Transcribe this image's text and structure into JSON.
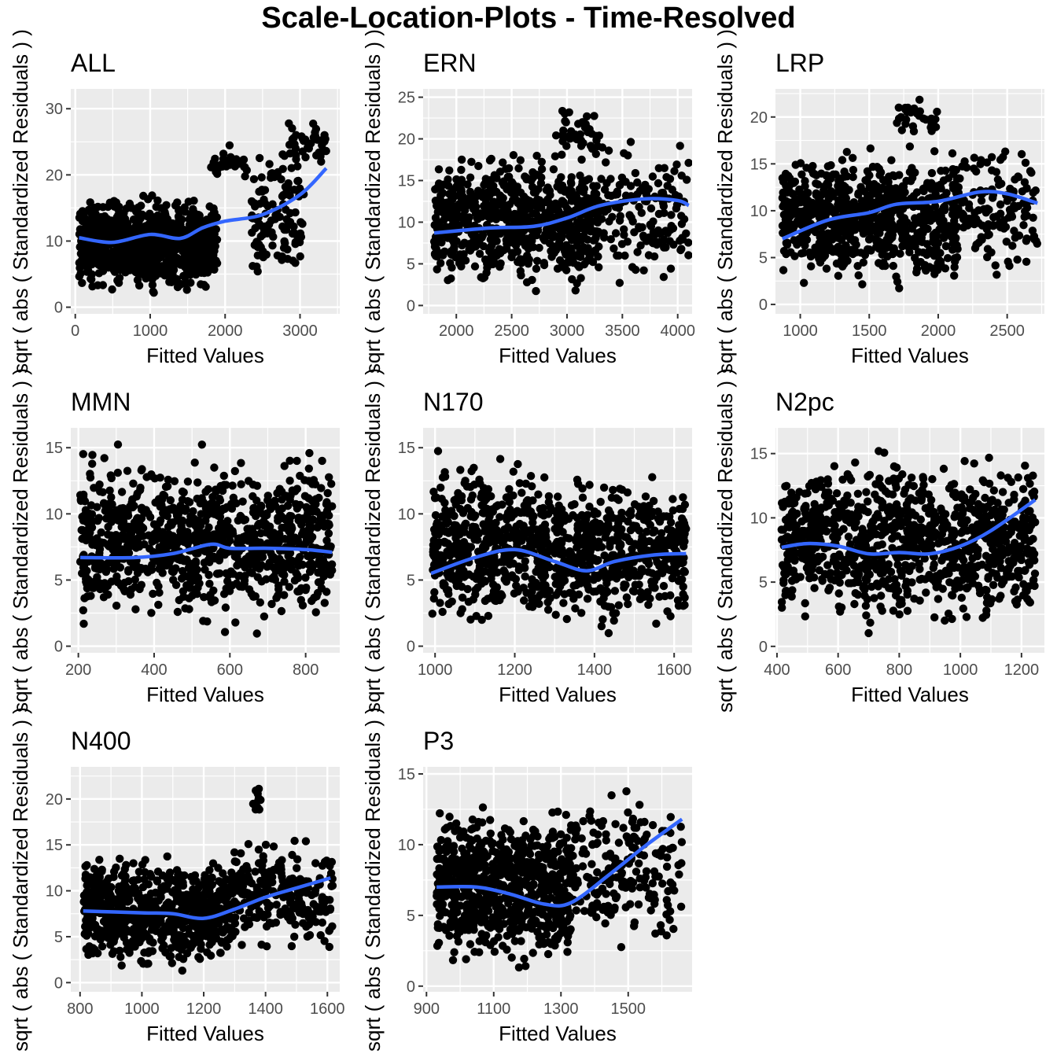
{
  "title": "Scale-Location-Plots - Time-Resolved",
  "colors": {
    "panel_bg": "#EBEBEB",
    "grid": "#FFFFFF",
    "points": "#000000",
    "smooth": "#3366FF",
    "axis_text": "#4D4D4D"
  },
  "chart_data": [
    {
      "type": "scatter",
      "title": "ALL",
      "xlabel": "Fitted Values",
      "ylabel": "sqrt ( abs ( Standardized Residuals ) )",
      "xlim": [
        -60,
        3530
      ],
      "ylim": [
        -1,
        33
      ],
      "xticks": [
        0,
        1000,
        2000,
        3000
      ],
      "yticks": [
        0,
        10,
        20,
        30
      ],
      "grid": true,
      "clusters": [
        {
          "x": [
            50,
            1900
          ],
          "y": [
            1,
            18
          ],
          "n": 900
        },
        {
          "x": [
            1800,
            2300
          ],
          "y": [
            18,
            25
          ],
          "n": 30
        },
        {
          "x": [
            2350,
            3050
          ],
          "y": [
            2,
            26
          ],
          "n": 120
        },
        {
          "x": [
            2850,
            3350
          ],
          "y": [
            20,
            31
          ],
          "n": 40
        }
      ],
      "smooth": {
        "x": [
          50,
          500,
          1000,
          1400,
          1700,
          2000,
          2500,
          3000,
          3350
        ],
        "y": [
          10.5,
          9.8,
          11,
          10.4,
          12,
          13,
          14,
          17,
          21
        ]
      }
    },
    {
      "type": "scatter",
      "title": "ERN",
      "xlabel": "Fitted Values",
      "ylabel": "sqrt ( abs ( Standardized Residuals ) )",
      "xlim": [
        1700,
        4130
      ],
      "ylim": [
        -1,
        26
      ],
      "xticks": [
        2000,
        2500,
        3000,
        3500,
        4000
      ],
      "yticks": [
        0,
        5,
        10,
        15,
        20,
        25
      ],
      "grid": true,
      "clusters": [
        {
          "x": [
            1800,
            3300
          ],
          "y": [
            0.5,
            20
          ],
          "n": 700
        },
        {
          "x": [
            2900,
            3300
          ],
          "y": [
            17,
            24.5
          ],
          "n": 40
        },
        {
          "x": [
            3300,
            4100
          ],
          "y": [
            0.5,
            21
          ],
          "n": 150
        }
      ],
      "smooth": {
        "x": [
          1800,
          2300,
          2700,
          3000,
          3300,
          3700,
          4000,
          4100
        ],
        "y": [
          8.7,
          9.3,
          9.5,
          10.5,
          12,
          12.8,
          12.6,
          12
        ]
      }
    },
    {
      "type": "scatter",
      "title": "LRP",
      "xlabel": "Fitted Values",
      "ylabel": "sqrt ( abs ( Standardized Residuals ) )",
      "xlim": [
        820,
        2770
      ],
      "ylim": [
        -1,
        23
      ],
      "xticks": [
        1000,
        1500,
        2000,
        2500
      ],
      "yticks": [
        0,
        5,
        10,
        15,
        20
      ],
      "grid": true,
      "clusters": [
        {
          "x": [
            870,
            2150
          ],
          "y": [
            0.5,
            18
          ],
          "n": 750
        },
        {
          "x": [
            1700,
            2000
          ],
          "y": [
            17,
            22.5
          ],
          "n": 30
        },
        {
          "x": [
            2100,
            2720
          ],
          "y": [
            2,
            19
          ],
          "n": 150
        }
      ],
      "smooth": {
        "x": [
          870,
          1200,
          1500,
          1700,
          2000,
          2300,
          2500,
          2720
        ],
        "y": [
          7,
          9,
          9.8,
          10.7,
          11,
          12,
          11.8,
          10.8
        ]
      }
    },
    {
      "type": "scatter",
      "title": "MMN",
      "xlabel": "Fitted Values",
      "ylabel": "sqrt ( abs ( Standardized Residuals ) )",
      "xlim": [
        180,
        890
      ],
      "ylim": [
        -0.5,
        16.5
      ],
      "xticks": [
        200,
        400,
        600,
        800
      ],
      "yticks": [
        0,
        5,
        10,
        15
      ],
      "grid": true,
      "clusters": [
        {
          "x": [
            205,
            870
          ],
          "y": [
            0.5,
            15.5
          ],
          "n": 1000
        }
      ],
      "smooth": {
        "x": [
          205,
          350,
          450,
          550,
          600,
          700,
          800,
          870
        ],
        "y": [
          6.7,
          6.7,
          7,
          7.7,
          7.4,
          7.4,
          7.3,
          7.1
        ]
      }
    },
    {
      "type": "scatter",
      "title": "N170",
      "xlabel": "Fitted Values",
      "ylabel": "sqrt ( abs ( Standardized Residuals ) )",
      "xlim": [
        970,
        1645
      ],
      "ylim": [
        -0.5,
        16.5
      ],
      "xticks": [
        1000,
        1200,
        1400,
        1600
      ],
      "yticks": [
        0,
        5,
        10,
        15
      ],
      "grid": true,
      "clusters": [
        {
          "x": [
            990,
            1290
          ],
          "y": [
            0.5,
            15.5
          ],
          "n": 500
        },
        {
          "x": [
            1300,
            1630
          ],
          "y": [
            0.3,
            13.5
          ],
          "n": 500
        }
      ],
      "smooth": {
        "x": [
          990,
          1100,
          1200,
          1300,
          1380,
          1450,
          1550,
          1630
        ],
        "y": [
          5.5,
          6.7,
          7.3,
          6.4,
          5.7,
          6.4,
          6.9,
          7
        ]
      }
    },
    {
      "type": "scatter",
      "title": "N2pc",
      "xlabel": "Fitted Values",
      "ylabel": "sqrt ( abs ( Standardized Residuals ) )",
      "xlim": [
        395,
        1275
      ],
      "ylim": [
        -0.5,
        17
      ],
      "xticks": [
        400,
        600,
        800,
        1000,
        1200
      ],
      "yticks": [
        0,
        5,
        10,
        15
      ],
      "grid": true,
      "clusters": [
        {
          "x": [
            415,
            1245
          ],
          "y": [
            0.5,
            16
          ],
          "n": 1000
        }
      ],
      "smooth": {
        "x": [
          415,
          500,
          600,
          700,
          800,
          900,
          1000,
          1100,
          1245
        ],
        "y": [
          7.7,
          8,
          7.8,
          7.2,
          7.3,
          7.2,
          7.8,
          9,
          11.4
        ]
      }
    },
    {
      "type": "scatter",
      "title": "N400",
      "xlabel": "Fitted Values",
      "ylabel": "sqrt ( abs ( Standardized Residuals ) )",
      "xlim": [
        770,
        1640
      ],
      "ylim": [
        -1,
        23.5
      ],
      "xticks": [
        800,
        1000,
        1200,
        1400,
        1600
      ],
      "yticks": [
        0,
        5,
        10,
        15,
        20
      ],
      "grid": true,
      "clusters": [
        {
          "x": [
            810,
            1290
          ],
          "y": [
            0.5,
            15
          ],
          "n": 700
        },
        {
          "x": [
            1290,
            1620
          ],
          "y": [
            2,
            17
          ],
          "n": 250
        },
        {
          "x": [
            1360,
            1410
          ],
          "y": [
            18,
            22
          ],
          "n": 10
        }
      ],
      "smooth": {
        "x": [
          810,
          1000,
          1100,
          1200,
          1300,
          1400,
          1500,
          1610
        ],
        "y": [
          7.8,
          7.6,
          7.5,
          7,
          8,
          9.3,
          10.3,
          11.4
        ]
      }
    },
    {
      "type": "scatter",
      "title": "P3",
      "xlabel": "Fitted Values",
      "ylabel": "sqrt ( abs ( Standardized Residuals ) )",
      "xlim": [
        890,
        1690
      ],
      "ylim": [
        -0.4,
        15.5
      ],
      "xticks": [
        900,
        1100,
        1300,
        1500
      ],
      "yticks": [
        0,
        5,
        10,
        15
      ],
      "grid": true,
      "clusters": [
        {
          "x": [
            930,
            1330
          ],
          "y": [
            0.5,
            13.5
          ],
          "n": 800
        },
        {
          "x": [
            1330,
            1660
          ],
          "y": [
            1.5,
            14.8
          ],
          "n": 200
        }
      ],
      "smooth": {
        "x": [
          930,
          1050,
          1150,
          1250,
          1330,
          1450,
          1550,
          1660
        ],
        "y": [
          7,
          7,
          6.5,
          5.8,
          5.9,
          8,
          9.9,
          11.8
        ]
      }
    }
  ]
}
